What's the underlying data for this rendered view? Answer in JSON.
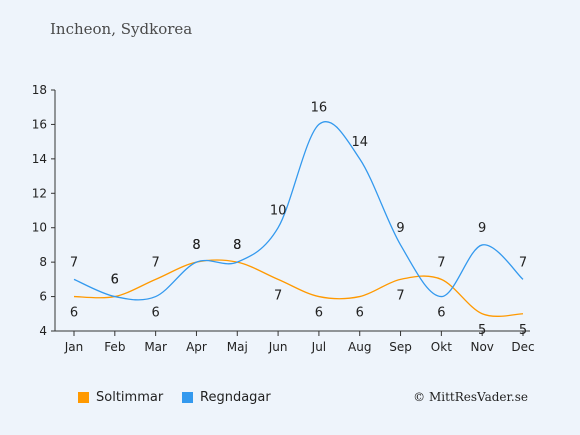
{
  "title": "Incheon, Sydkorea",
  "copyright": "© MittResVader.se",
  "colors": {
    "sun": "#ff9900",
    "rain": "#3399ee",
    "background": "#eef4fb"
  },
  "chart_data": {
    "type": "line",
    "categories": [
      "Jan",
      "Feb",
      "Mar",
      "Apr",
      "Maj",
      "Jun",
      "Jul",
      "Aug",
      "Sep",
      "Okt",
      "Nov",
      "Dec"
    ],
    "ylim": [
      4,
      18
    ],
    "yticks": [
      4,
      6,
      8,
      10,
      12,
      14,
      16,
      18
    ],
    "grid": false,
    "legend_position": "bottom",
    "series": [
      {
        "name": "Soltimmar",
        "values": [
          6,
          6,
          7,
          8,
          8,
          7,
          6,
          6,
          7,
          7,
          5,
          5
        ]
      },
      {
        "name": "Regndagar",
        "values": [
          7,
          6,
          6,
          8,
          8,
          10,
          16,
          14,
          9,
          6,
          9,
          7
        ]
      }
    ]
  }
}
